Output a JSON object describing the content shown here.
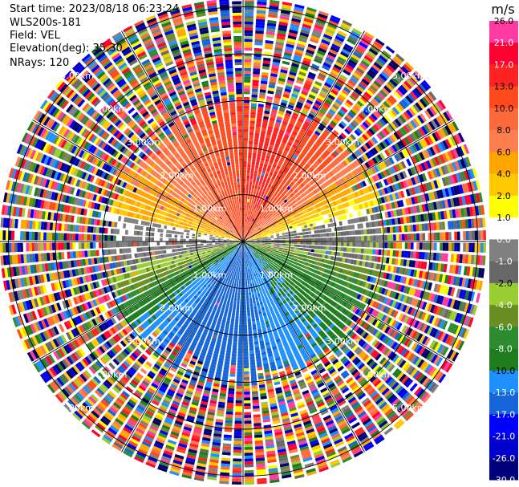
{
  "header": {
    "start_time": "Start time: 2023/08/18 06:23:24",
    "instrument": "WLS200s-181",
    "field": "Field: VEL",
    "elevation": "Elevation(deg): 35.30",
    "nrays": "NRays: 120"
  },
  "colorbar": {
    "unit": "m/s",
    "levels": [
      "26.0",
      "21.0",
      "17.0",
      "13.0",
      "10.0",
      "8.0",
      "6.0",
      "4.0",
      "2.0",
      "1.0",
      "0.0",
      "-1.0",
      "-2.0",
      "-4.0",
      "-6.0",
      "-8.0",
      "-10.0",
      "-13.0",
      "-17.0",
      "-21.0",
      "-26.0",
      "-30.0"
    ],
    "colors": [
      "#ff3aa0",
      "#ff0030",
      "#ff2222",
      "#ff4a1e",
      "#ff6a3c",
      "#ff7e50",
      "#ffa500",
      "#ffc800",
      "#ffff00",
      "#ffffff",
      "#808080",
      "#686868",
      "#9acd32",
      "#6b8e23",
      "#2e8b2e",
      "#1e7b1e",
      "#1e90ff",
      "#1565d8",
      "#0000ff",
      "#0000cc",
      "#00007a",
      "#000060"
    ]
  },
  "chart_data": {
    "type": "heatmap",
    "projection": "polar PPI",
    "field": "VEL",
    "units": "m/s",
    "nrays": 120,
    "elevation_deg": 35.3,
    "range_rings_km": [
      1.0,
      2.0,
      3.0,
      4.0,
      5.0
    ],
    "ring_labels": [
      "1.00km",
      "2.00km",
      "3.00km",
      "4.00km",
      "5.00km"
    ],
    "spoke_step_deg": 30,
    "valid_data_max_km": 2.8,
    "pattern": {
      "north_half": "positive 6 to 13 m/s (orange/red core ~10-13, fringe yellow 2-4)",
      "south_half": "negative -4 to -13 m/s (green ~-6, blue core ~-10 to -13 to the south)",
      "east_west_band": "near-zero 0 to -1 m/s (grey)",
      "beyond_valid_range": "noise"
    },
    "vmin": -30.0,
    "vmax": 26.0
  }
}
